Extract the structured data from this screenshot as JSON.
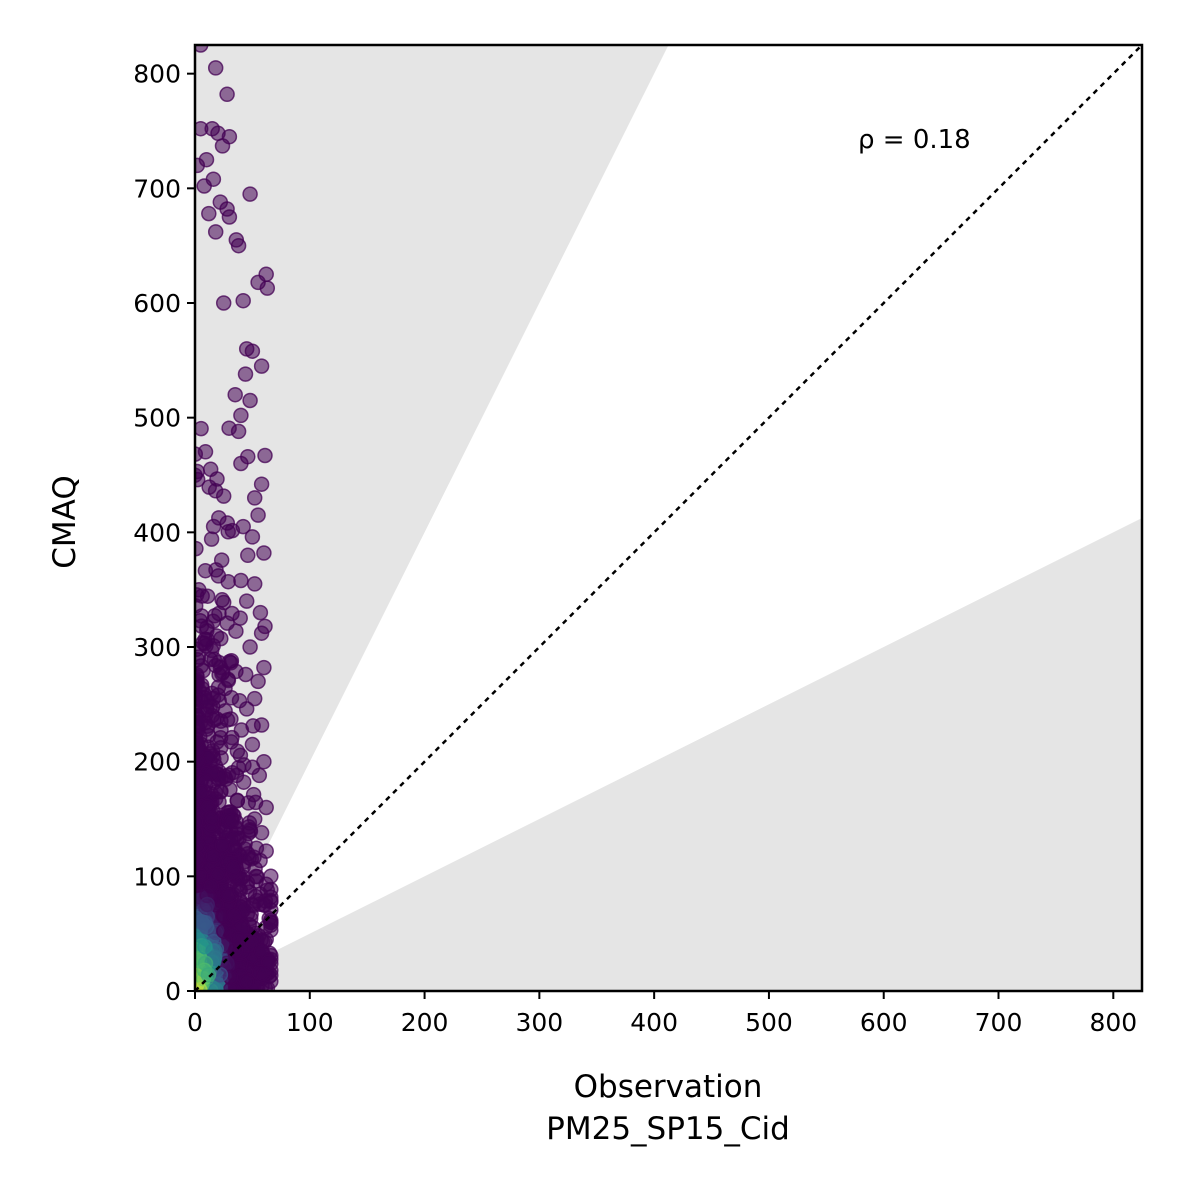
{
  "chart_data": {
    "type": "scatter",
    "xlabel": "Observation",
    "xlabel_sub": "PM25_SP15_Cid",
    "ylabel": "CMAQ",
    "annotation": "ρ = 0.18",
    "xlim": [
      0,
      825
    ],
    "ylim": [
      0,
      825
    ],
    "xticks": [
      0,
      100,
      200,
      300,
      400,
      500,
      600,
      700,
      800
    ],
    "yticks": [
      0,
      100,
      200,
      300,
      400,
      500,
      600,
      700,
      800
    ],
    "one_to_one_line": true,
    "shaded_region_slopes": [
      2,
      0.5
    ],
    "colormap": "viridis",
    "point_alpha": 0.55,
    "colors": {
      "shade": "#e5e5e5",
      "viridis_low": "#440154",
      "viridis_high": "#fde725"
    },
    "cluster_summary": {
      "x_range": [
        0,
        65
      ],
      "y_range": [
        0,
        825
      ],
      "dense_core": {
        "x": [
          0,
          25
        ],
        "y": [
          0,
          60
        ]
      }
    },
    "points": [
      [
        5,
        825
      ],
      [
        18,
        805
      ],
      [
        28,
        782
      ],
      [
        5,
        752
      ],
      [
        15,
        752
      ],
      [
        20,
        748
      ],
      [
        30,
        745
      ],
      [
        24,
        737
      ],
      [
        2,
        720
      ],
      [
        10,
        725
      ],
      [
        8,
        702
      ],
      [
        16,
        708
      ],
      [
        48,
        695
      ],
      [
        22,
        688
      ],
      [
        28,
        682
      ],
      [
        12,
        678
      ],
      [
        30,
        675
      ],
      [
        18,
        662
      ],
      [
        36,
        655
      ],
      [
        38,
        650
      ],
      [
        62,
        625
      ],
      [
        55,
        618
      ],
      [
        63,
        613
      ],
      [
        42,
        602
      ],
      [
        25,
        600
      ],
      [
        45,
        560
      ],
      [
        50,
        558
      ],
      [
        58,
        545
      ],
      [
        44,
        538
      ],
      [
        35,
        520
      ],
      [
        48,
        515
      ],
      [
        40,
        502
      ],
      [
        38,
        488
      ],
      [
        46,
        466
      ],
      [
        58,
        442
      ],
      [
        61,
        467
      ],
      [
        40,
        460
      ],
      [
        52,
        430
      ],
      [
        55,
        415
      ],
      [
        42,
        405
      ],
      [
        50,
        396
      ],
      [
        46,
        380
      ],
      [
        60,
        382
      ],
      [
        40,
        358
      ],
      [
        52,
        355
      ],
      [
        45,
        340
      ],
      [
        57,
        330
      ],
      [
        61,
        318
      ],
      [
        58,
        312
      ],
      [
        48,
        300
      ],
      [
        60,
        282
      ],
      [
        55,
        270
      ],
      [
        52,
        255
      ],
      [
        45,
        246
      ],
      [
        58,
        232
      ],
      [
        50,
        215
      ],
      [
        60,
        200
      ],
      [
        56,
        188
      ],
      [
        62,
        160
      ],
      [
        52,
        150
      ],
      [
        58,
        138
      ],
      [
        62,
        122
      ],
      [
        66,
        100
      ],
      [
        63,
        88
      ],
      [
        60,
        75
      ],
      [
        66,
        60
      ],
      [
        62,
        45
      ],
      [
        58,
        35
      ],
      [
        64,
        25
      ],
      [
        60,
        15
      ],
      [
        45,
        8
      ]
    ]
  }
}
